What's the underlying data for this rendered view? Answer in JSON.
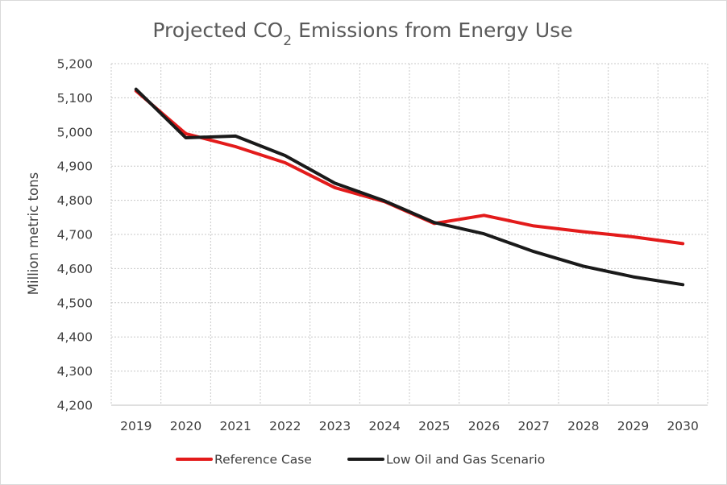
{
  "chart_data": {
    "type": "line",
    "title_parts": {
      "pre": "Projected CO",
      "sub": "2",
      "post": " Emissions from Energy Use"
    },
    "xlabel": "",
    "ylabel": "Million metric tons",
    "categories": [
      "2019",
      "2020",
      "2021",
      "2022",
      "2023",
      "2024",
      "2025",
      "2026",
      "2027",
      "2028",
      "2029",
      "2030"
    ],
    "ylim": [
      4200,
      5200
    ],
    "yticks": [
      4200,
      4300,
      4400,
      4500,
      4600,
      4700,
      4800,
      4900,
      5000,
      5100,
      5200
    ],
    "ytick_labels": [
      "4,200",
      "4,300",
      "4,400",
      "4,500",
      "4,600",
      "4,700",
      "4,800",
      "4,900",
      "5,000",
      "5,100",
      "5,200"
    ],
    "grid": true,
    "legend_position": "bottom",
    "series": [
      {
        "name": "Reference Case",
        "color": "#e31b1b",
        "values": [
          5120,
          4995,
          4957,
          4910,
          4837,
          4796,
          4732,
          4756,
          4725,
          4708,
          4693,
          4673
        ]
      },
      {
        "name": "Low Oil and Gas Scenario",
        "color": "#1a1a1a",
        "values": [
          5125,
          4983,
          4988,
          4931,
          4850,
          4798,
          4735,
          4702,
          4650,
          4607,
          4576,
          4553
        ]
      }
    ]
  }
}
